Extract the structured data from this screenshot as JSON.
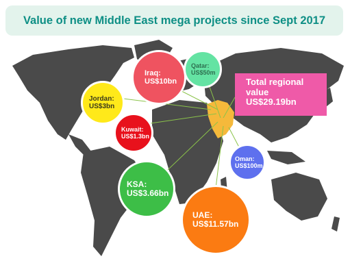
{
  "title": "Value of new Middle East mega projects since Sept 2017",
  "chart_data": {
    "type": "bubble-map",
    "title": "Value of new Middle East mega projects since Sept 2017",
    "total": {
      "label": "Total regional value",
      "value_text": "US$29.19bn",
      "value": 29.19
    },
    "units": "US$bn",
    "series": [
      {
        "name": "Iraq",
        "value_text": "US$10bn",
        "value": 10,
        "color": "#ef5360"
      },
      {
        "name": "Qatar",
        "value_text": "US$50m",
        "value": 0.05,
        "color": "#64e3a3"
      },
      {
        "name": "Jordan",
        "value_text": "US$3bn",
        "value": 3,
        "color": "#ffe91a"
      },
      {
        "name": "Kuwait",
        "value_text": "US$1.3bn",
        "value": 1.3,
        "color": "#e8111c"
      },
      {
        "name": "Oman",
        "value_text": "US$100m",
        "value": 0.1,
        "color": "#5e70ee"
      },
      {
        "name": "KSA",
        "value_text": "US$3.66bn",
        "value": 3.66,
        "color": "#3dbe47"
      },
      {
        "name": "UAE",
        "value_text": "US$11.57bn",
        "value": 11.57,
        "color": "#fb7b12"
      }
    ]
  },
  "colors": {
    "map": "#4a4a4a",
    "highlight": "#f5b93b",
    "title": "#0e8f85",
    "title_bg": "#e3f3ec",
    "leader": "#8bc34a"
  }
}
